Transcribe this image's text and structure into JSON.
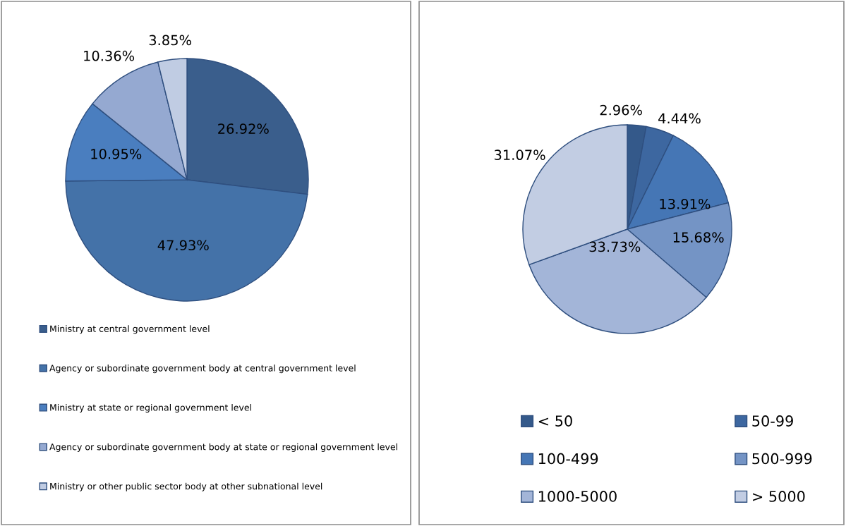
{
  "chart_data": [
    {
      "type": "pie",
      "categories": [
        "Ministry at central government level",
        "Agency or subordinate government body at central government level",
        "Ministry at state or regional government level",
        "Agency or subordinate government body at state or regional government level",
        "Ministry or other public sector body at other subnational level"
      ],
      "values": [
        26.92,
        47.93,
        10.95,
        10.36,
        3.85
      ],
      "value_labels": [
        "26.92%",
        "47.93%",
        "10.95%",
        "10.36%",
        "3.85%"
      ],
      "colors": [
        "#3a5e8c",
        "#4472a8",
        "#4a7ebf",
        "#95a9d1",
        "#c0cce3"
      ],
      "legend": "bottom"
    },
    {
      "type": "pie",
      "categories": [
        "< 50",
        "50-99",
        "100-499",
        "500-999",
        "1000-5000",
        "> 5000"
      ],
      "values": [
        2.96,
        4.44,
        13.91,
        15.68,
        33.73,
        31.07
      ],
      "value_labels": [
        "2.96%",
        "4.44%",
        "13.91%",
        "15.68%",
        "33.73%",
        "31.07%"
      ],
      "colors": [
        "#34598a",
        "#3d67a0",
        "#4576b5",
        "#7494c5",
        "#a3b5d8",
        "#c2cde3"
      ],
      "legend": "bottom"
    }
  ]
}
